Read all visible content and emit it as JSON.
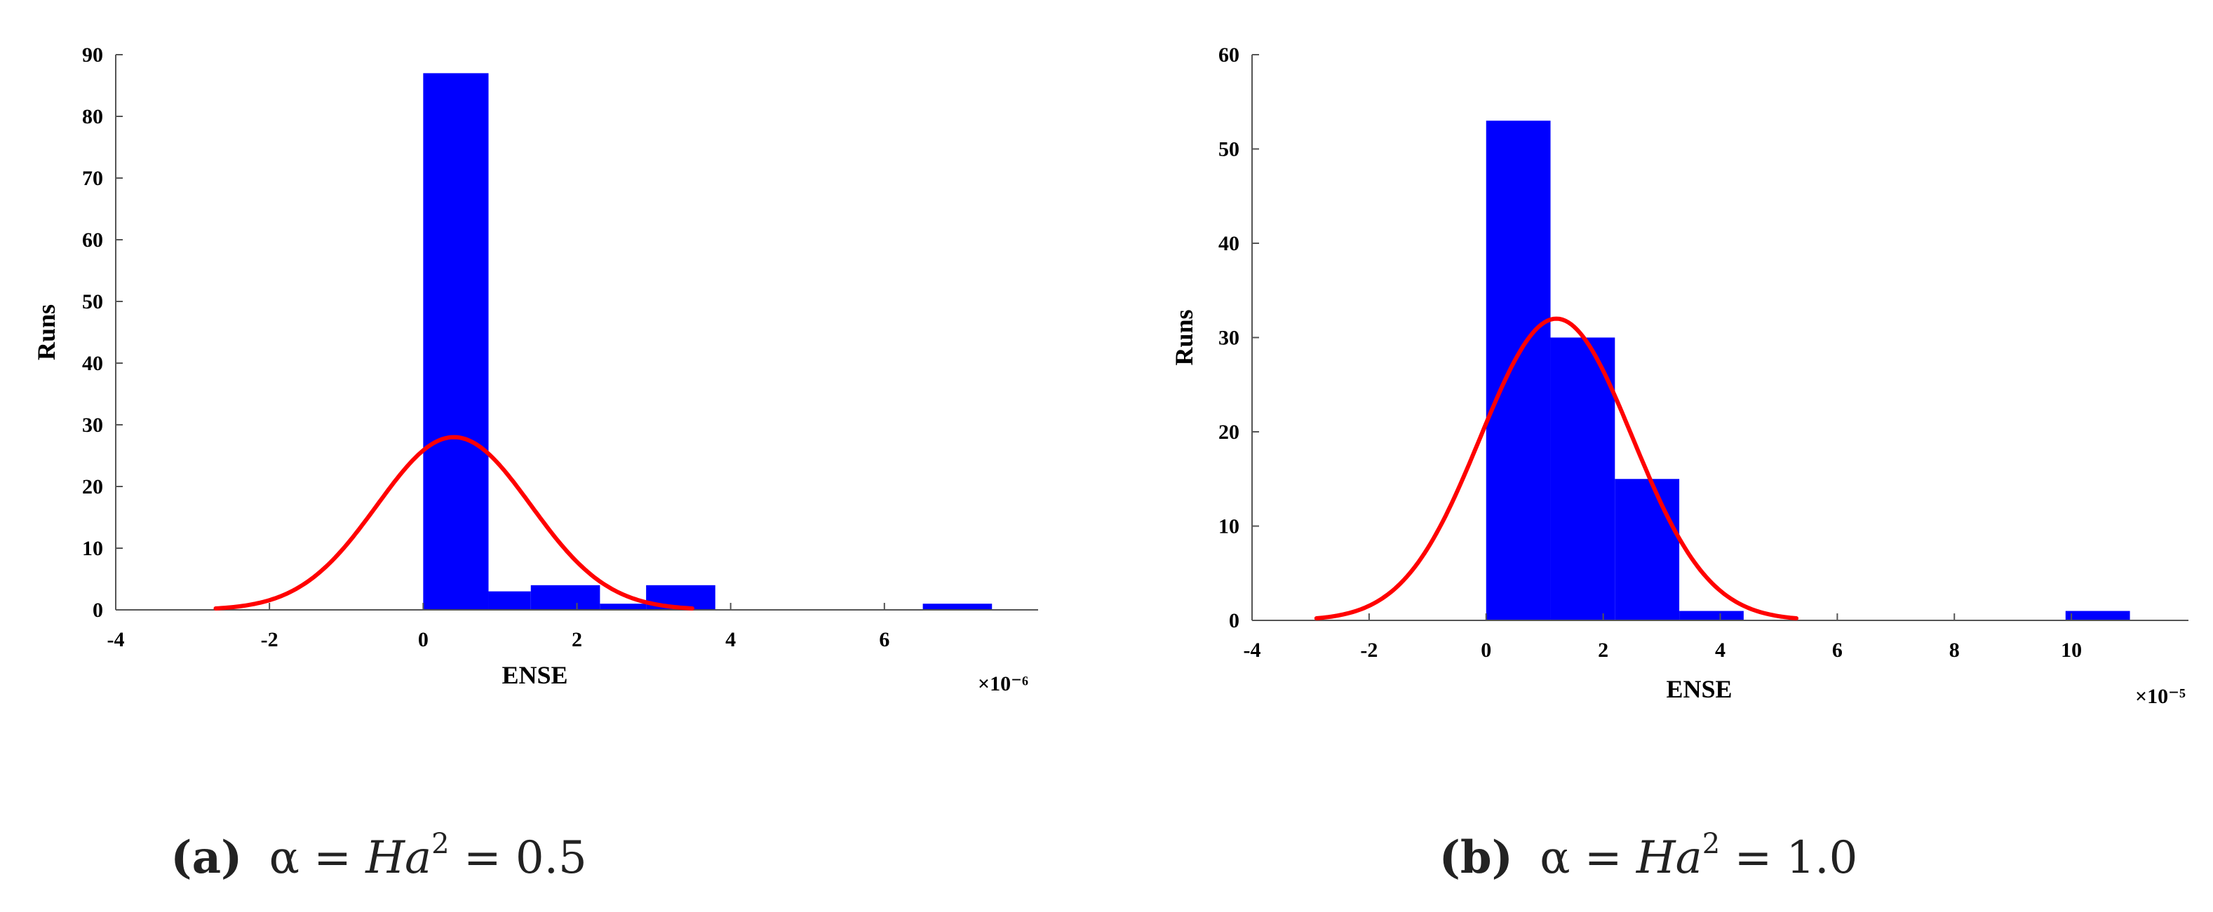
{
  "chart_data": [
    {
      "type": "bar",
      "panel": "a",
      "xlabel": "ENSE",
      "ylabel": "Runs",
      "x_multiplier": "×10⁻⁶",
      "xlim": [
        -4,
        8
      ],
      "ylim": [
        0,
        90
      ],
      "xticks": [
        -4,
        -2,
        0,
        2,
        4,
        6
      ],
      "yticks": [
        0,
        10,
        20,
        30,
        40,
        50,
        60,
        70,
        80,
        90
      ],
      "bars": [
        {
          "x0": 0.0,
          "x1": 0.85,
          "value": 87
        },
        {
          "x0": 0.85,
          "x1": 1.4,
          "value": 3
        },
        {
          "x0": 1.4,
          "x1": 2.3,
          "value": 4
        },
        {
          "x0": 2.3,
          "x1": 2.9,
          "value": 1
        },
        {
          "x0": 2.9,
          "x1": 3.8,
          "value": 4
        },
        {
          "x0": 6.5,
          "x1": 7.4,
          "value": 1
        }
      ],
      "fit_curve": {
        "mean": 0.4,
        "sd": 1.0,
        "peak": 28,
        "x_from": -2.7,
        "x_to": 3.5,
        "color": "#ff0000"
      },
      "bar_color": "#0000ff",
      "grid": false,
      "caption": {
        "label": "(a)",
        "math_pre": "α = ",
        "math_it": "Ha",
        "math_sup": "2",
        "math_post": " = 0.5"
      }
    },
    {
      "type": "bar",
      "panel": "b",
      "xlabel": "ENSE",
      "ylabel": "Runs",
      "x_multiplier": "×10⁻⁵",
      "xlim": [
        -4,
        12
      ],
      "ylim": [
        0,
        60
      ],
      "xticks": [
        -4,
        -2,
        0,
        2,
        4,
        6,
        8,
        10
      ],
      "yticks": [
        0,
        10,
        20,
        30,
        40,
        50,
        60
      ],
      "bars": [
        {
          "x0": 0.0,
          "x1": 1.1,
          "value": 53
        },
        {
          "x0": 1.1,
          "x1": 2.2,
          "value": 30
        },
        {
          "x0": 2.2,
          "x1": 3.3,
          "value": 15
        },
        {
          "x0": 3.3,
          "x1": 4.4,
          "value": 1
        },
        {
          "x0": 9.9,
          "x1": 11.0,
          "value": 1
        }
      ],
      "fit_curve": {
        "mean": 1.2,
        "sd": 1.3,
        "peak": 32,
        "x_from": -2.9,
        "x_to": 5.3,
        "color": "#ff0000"
      },
      "bar_color": "#0000ff",
      "grid": false,
      "caption": {
        "label": "(b)",
        "math_pre": "α = ",
        "math_it": "Ha",
        "math_sup": "2",
        "math_post": " = 1.0"
      }
    }
  ]
}
